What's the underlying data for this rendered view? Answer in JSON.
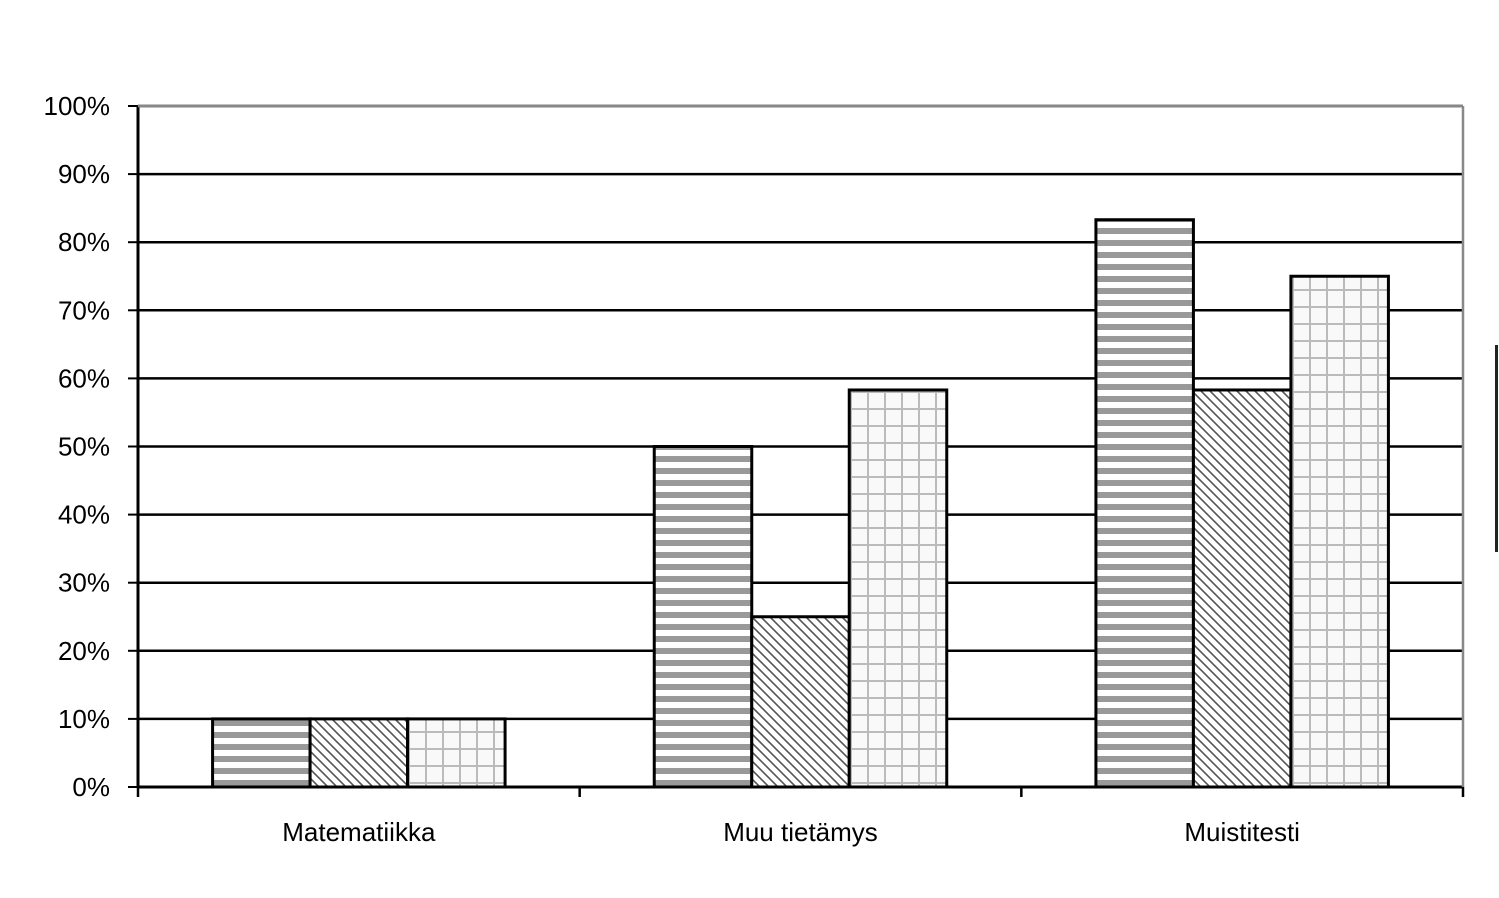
{
  "chart_data": {
    "type": "bar",
    "title": "",
    "xlabel": "",
    "ylabel": "",
    "ylim": [
      0,
      100
    ],
    "y_ticks": [
      "0%",
      "10%",
      "20%",
      "30%",
      "40%",
      "50%",
      "60%",
      "70%",
      "80%",
      "90%",
      "100%"
    ],
    "grid": true,
    "legend": "none",
    "categories": [
      "Matematiikka",
      "Muu tietämys",
      "Muistitesti"
    ],
    "series": [
      {
        "pattern": "horizontal-stripes",
        "color": "#999999",
        "values": [
          10,
          50,
          83.3
        ]
      },
      {
        "pattern": "diagonal-hatch",
        "color": "#555555",
        "values": [
          10,
          25,
          58.3
        ]
      },
      {
        "pattern": "grid",
        "color": "#bbbbbb",
        "values": [
          10,
          58.3,
          75
        ]
      }
    ]
  }
}
